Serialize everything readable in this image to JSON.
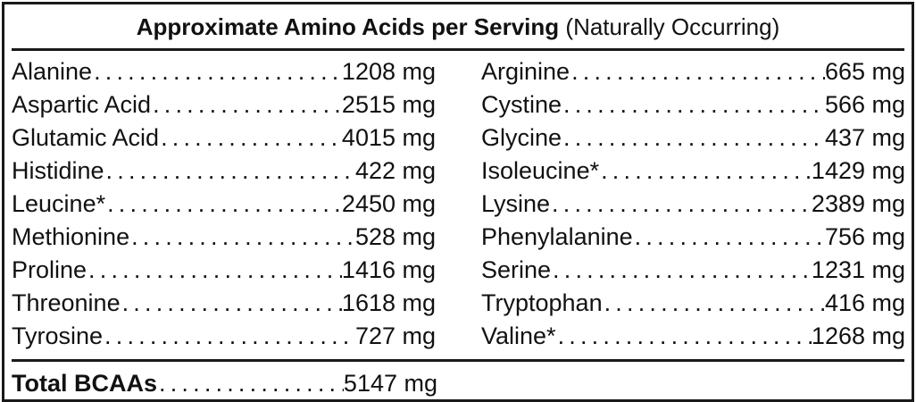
{
  "title": {
    "bold": "Approximate Amino Acids per Serving",
    "normal": "(Naturally Occurring)"
  },
  "left": [
    {
      "name": "Alanine",
      "value": "1208 mg"
    },
    {
      "name": "Aspartic Acid",
      "value": "2515 mg"
    },
    {
      "name": "Glutamic Acid",
      "value": "4015 mg"
    },
    {
      "name": "Histidine",
      "value": "422 mg"
    },
    {
      "name": "Leucine*",
      "value": "2450 mg"
    },
    {
      "name": "Methionine",
      "value": "528 mg"
    },
    {
      "name": "Proline",
      "value": "1416 mg"
    },
    {
      "name": "Threonine",
      "value": "1618 mg"
    },
    {
      "name": "Tyrosine",
      "value": "727 mg"
    }
  ],
  "right": [
    {
      "name": "Arginine",
      "value": "665 mg"
    },
    {
      "name": "Cystine",
      "value": "566 mg"
    },
    {
      "name": "Glycine",
      "value": "437 mg"
    },
    {
      "name": "Isoleucine*",
      "value": "1429 mg"
    },
    {
      "name": "Lysine",
      "value": "2389 mg"
    },
    {
      "name": "Phenylalanine",
      "value": "756 mg"
    },
    {
      "name": "Serine",
      "value": "1231 mg"
    },
    {
      "name": "Tryptophan",
      "value": "416 mg"
    },
    {
      "name": "Valine*",
      "value": "1268 mg"
    }
  ],
  "total": {
    "name": "Total BCAAs",
    "value": "5147 mg"
  }
}
